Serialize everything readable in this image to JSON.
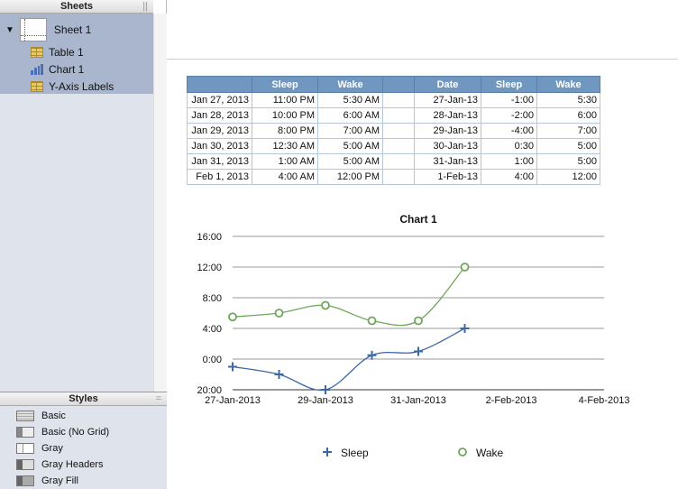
{
  "sidebar": {
    "sheets_title": "Sheets",
    "sheet": "Sheet 1",
    "items": [
      {
        "label": "Table 1",
        "icon": "table-icon"
      },
      {
        "label": "Chart 1",
        "icon": "chart-icon"
      },
      {
        "label": "Y-Axis Labels",
        "icon": "table-icon"
      }
    ],
    "styles_title": "Styles",
    "styles": [
      "Basic",
      "Basic (No Grid)",
      "Gray",
      "Gray Headers",
      "Gray Fill"
    ]
  },
  "table": {
    "headers": [
      "",
      "Sleep",
      "Wake",
      "",
      "Date",
      "Sleep",
      "Wake"
    ],
    "rows": [
      [
        "Jan 27, 2013",
        "11:00 PM",
        "5:30 AM",
        "",
        "27-Jan-13",
        "-1:00",
        "5:30"
      ],
      [
        "Jan 28, 2013",
        "10:00 PM",
        "6:00 AM",
        "",
        "28-Jan-13",
        "-2:00",
        "6:00"
      ],
      [
        "Jan 29, 2013",
        "8:00 PM",
        "7:00 AM",
        "",
        "29-Jan-13",
        "-4:00",
        "7:00"
      ],
      [
        "Jan 30, 2013",
        "12:30 AM",
        "5:00 AM",
        "",
        "30-Jan-13",
        "0:30",
        "5:00"
      ],
      [
        "Jan 31, 2013",
        "1:00 AM",
        "5:00 AM",
        "",
        "31-Jan-13",
        "1:00",
        "5:00"
      ],
      [
        "Feb 1, 2013",
        "4:00 AM",
        "12:00 PM",
        "",
        "1-Feb-13",
        "4:00",
        "12:00"
      ]
    ]
  },
  "chart_data": {
    "type": "line",
    "title": "Chart 1",
    "x": [
      0,
      1,
      2,
      3,
      4,
      5
    ],
    "x_ticks": [
      {
        "v": 0,
        "label": "27-Jan-2013"
      },
      {
        "v": 2,
        "label": "29-Jan-2013"
      },
      {
        "v": 4,
        "label": "31-Jan-2013"
      },
      {
        "v": 6,
        "label": "2-Feb-2013"
      },
      {
        "v": 8,
        "label": "4-Feb-2013"
      }
    ],
    "y_ticks": [
      {
        "v": 16,
        "label": "16:00"
      },
      {
        "v": 12,
        "label": "12:00"
      },
      {
        "v": 8,
        "label": "8:00"
      },
      {
        "v": 4,
        "label": "4:00"
      },
      {
        "v": 0,
        "label": "0:00"
      },
      {
        "v": -4,
        "label": "20:00"
      }
    ],
    "xlim": [
      0,
      8
    ],
    "ylim": [
      -4,
      16
    ],
    "legend": "bottom",
    "series": [
      {
        "name": "Sleep",
        "color": "#3d68a8",
        "marker": "plus",
        "values": [
          -1,
          -2,
          -4,
          0.5,
          1,
          4
        ]
      },
      {
        "name": "Wake",
        "color": "#6ea75a",
        "marker": "circle",
        "values": [
          5.5,
          6,
          7,
          5,
          5,
          12
        ]
      }
    ]
  }
}
